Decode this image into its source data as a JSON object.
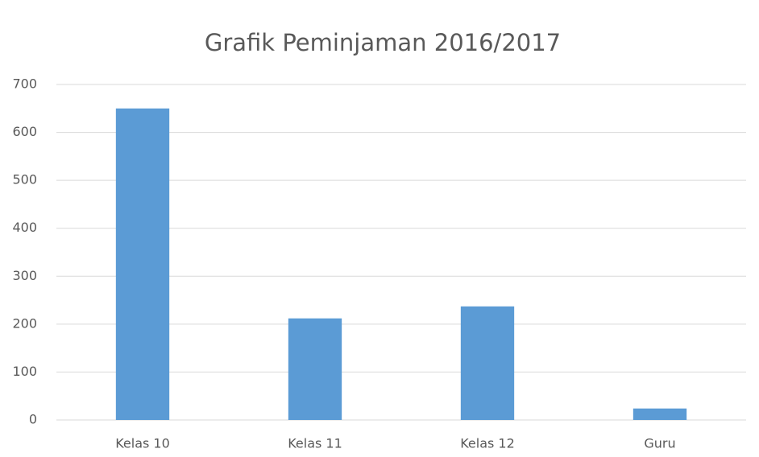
{
  "chart_data": {
    "type": "bar",
    "title": "Grafik Peminjaman 2016/2017",
    "categories": [
      "Kelas 10",
      "Kelas 11",
      "Kelas 12",
      "Guru"
    ],
    "values": [
      650,
      212,
      237,
      24
    ],
    "color": "#5b9bd5",
    "ylim": [
      0,
      700
    ],
    "yticks": [
      0,
      100,
      200,
      300,
      400,
      500,
      600,
      700
    ],
    "grid": true
  }
}
